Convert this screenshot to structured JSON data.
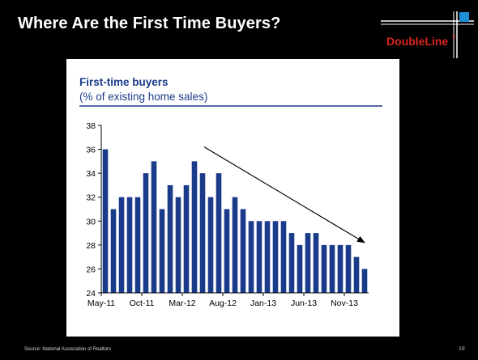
{
  "slide": {
    "title": "Where Are the First Time Buyers?",
    "source": "Source: National Association of Realtors",
    "page_number": "18"
  },
  "logo": {
    "text": "DoubleLine",
    "registered_mark": "®",
    "brand_color": "#d9261c",
    "accent_blue": "#1f8fd6"
  },
  "colors": {
    "background": "#000000",
    "bar": "#1a3a8a",
    "title_text": "#1a3a8a",
    "rule": "#1a3a8a"
  },
  "chart_data": {
    "type": "bar",
    "title": "First-time buyers",
    "subtitle": "(% of existing home sales)",
    "xlabel": "",
    "ylabel": "",
    "ylim": [
      24,
      38
    ],
    "yticks": [
      24,
      26,
      28,
      30,
      32,
      34,
      36,
      38
    ],
    "categories": [
      "May-11",
      "Jun-11",
      "Jul-11",
      "Aug-11",
      "Sep-11",
      "Oct-11",
      "Nov-11",
      "Dec-11",
      "Jan-12",
      "Feb-12",
      "Mar-12",
      "Apr-12",
      "May-12",
      "Jun-12",
      "Jul-12",
      "Aug-12",
      "Sep-12",
      "Oct-12",
      "Nov-12",
      "Dec-12",
      "Jan-13",
      "Feb-13",
      "Mar-13",
      "Apr-13",
      "May-13",
      "Jun-13",
      "Jul-13",
      "Aug-13",
      "Sep-13",
      "Oct-13",
      "Nov-13",
      "Dec-13",
      "Jan-14"
    ],
    "values": [
      36,
      31,
      32,
      32,
      32,
      34,
      35,
      31,
      33,
      32,
      33,
      35,
      34,
      32,
      34,
      31,
      32,
      31,
      30,
      30,
      30,
      30,
      30,
      29,
      28,
      29,
      29,
      28,
      28,
      28,
      28,
      27,
      26
    ],
    "xtick_labels": [
      "May-11",
      "Oct-11",
      "Mar-12",
      "Aug-12",
      "Jan-13",
      "Jun-13",
      "Nov-13"
    ],
    "xtick_indices": [
      0,
      5,
      10,
      15,
      20,
      25,
      30
    ],
    "trend_arrow": {
      "from": {
        "index": 12.7,
        "value": 36.2
      },
      "to": {
        "index": 32.5,
        "value": 28.2
      }
    },
    "grid": false,
    "legend": "none"
  }
}
